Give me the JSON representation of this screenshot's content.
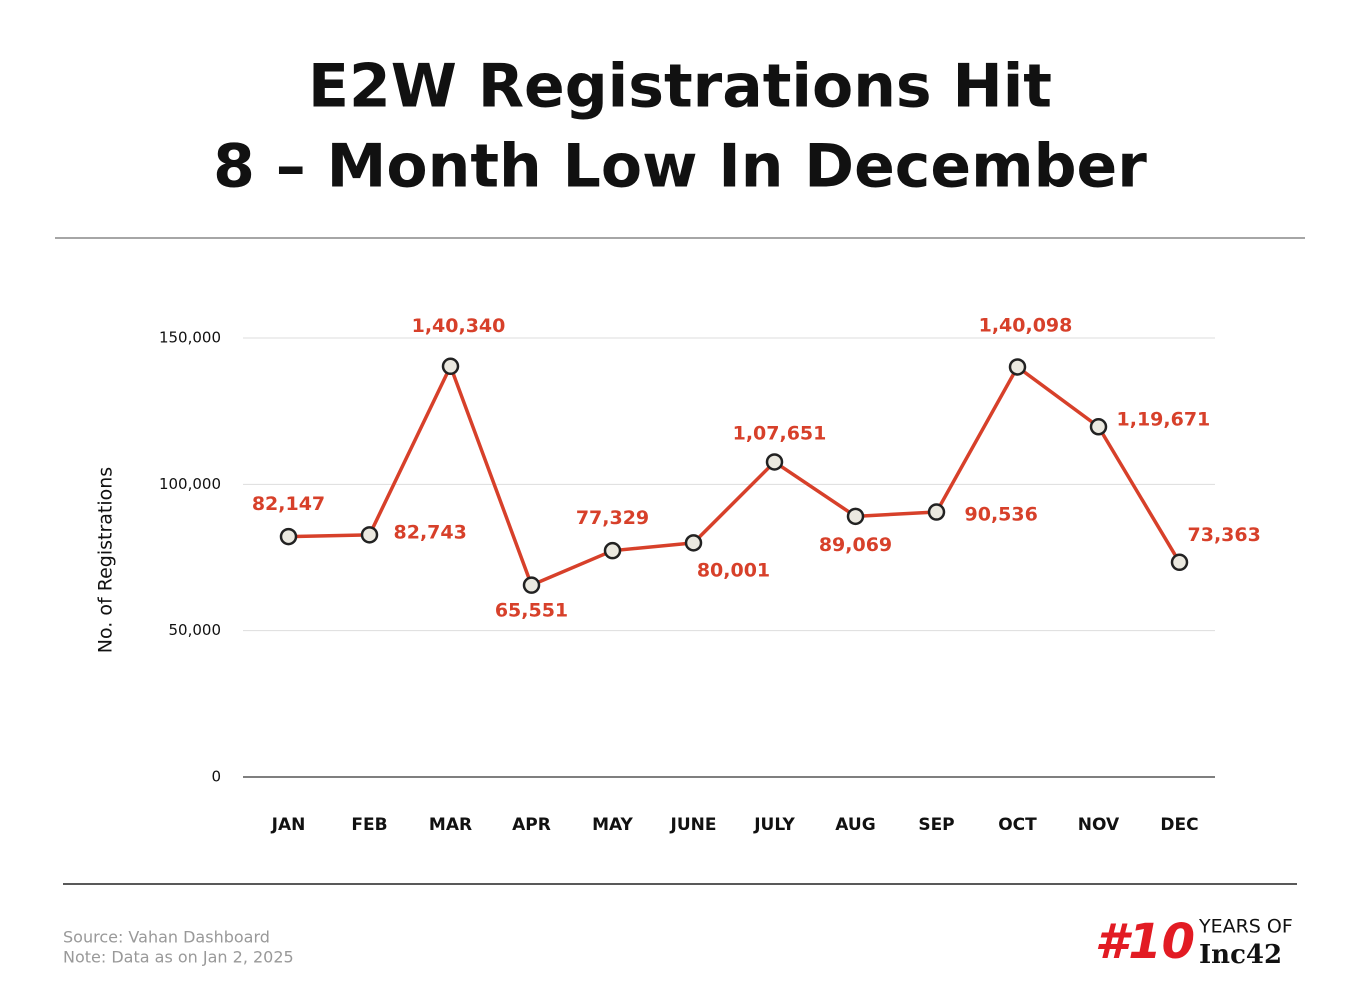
{
  "chart_data": {
    "type": "line",
    "title": [
      "E2W Registrations Hit",
      "8 – Month Low  In December"
    ],
    "y_label": "No. of Registrations",
    "categories": [
      "JAN",
      "FEB",
      "MAR",
      "APR",
      "MAY",
      "JUNE",
      "JULY",
      "AUG",
      "SEP",
      "OCT",
      "NOV",
      "DEC"
    ],
    "values": [
      82147,
      82743,
      140340,
      65551,
      77329,
      80001,
      107651,
      89069,
      90536,
      140098,
      119671,
      73363
    ],
    "value_labels": [
      "82,147",
      "82,743",
      "1,40,340",
      "65,551",
      "77,329",
      "80,001",
      "1,07,651",
      "89,069",
      "90,536",
      "1,40,098",
      "1,19,671",
      "73,363"
    ],
    "color": "#d7402a",
    "ylim": [
      0,
      150000
    ],
    "yticks": [
      0,
      {
        "value": 50000,
        "label": "50,000"
      },
      {
        "value": 100000,
        "label": "100,000"
      },
      {
        "value": 150000,
        "label": "150,000"
      }
    ],
    "grid": true
  },
  "footer": {
    "source": "Source: Vahan Dashboard",
    "note": "Note: Data as on Jan 2, 2025"
  },
  "logo": {
    "mark": "#10",
    "line1": "YEARS OF",
    "line2": "Inc42"
  }
}
